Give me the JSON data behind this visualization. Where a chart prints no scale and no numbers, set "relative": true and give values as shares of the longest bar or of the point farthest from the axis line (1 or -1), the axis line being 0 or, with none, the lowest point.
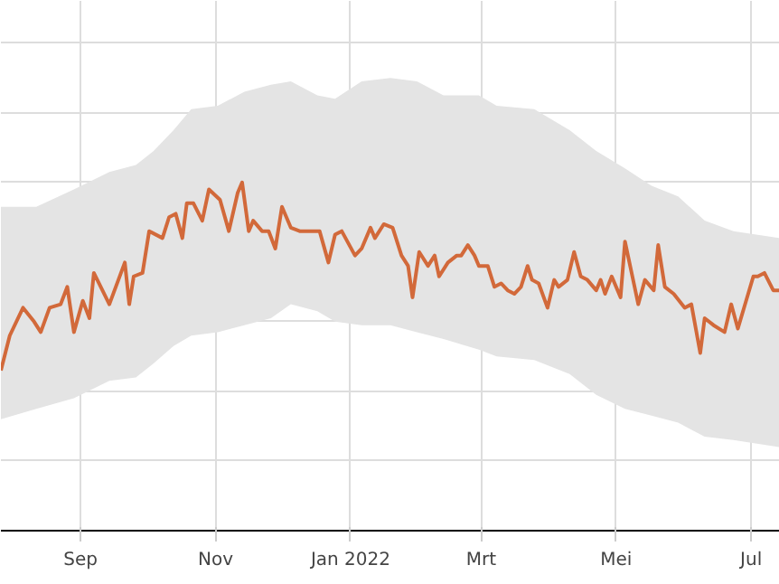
{
  "chart_data": {
    "type": "line",
    "relative": true,
    "grid": true,
    "xlim": [
      "2021-07-27",
      "2022-07-14"
    ],
    "xticks": [
      {
        "value": "2021-09-01",
        "label": "Sep"
      },
      {
        "value": "2021-11-01",
        "label": "Nov"
      },
      {
        "value": "2022-01-01",
        "label": "Jan 2022"
      },
      {
        "value": "2022-03-01",
        "label": "Mrt"
      },
      {
        "value": "2022-05-01",
        "label": "Mei"
      },
      {
        "value": "2022-07-01",
        "label": "Jul"
      }
    ],
    "series": [
      {
        "color": "#e4e4e4",
        "values": [
          null,
          null,
          null,
          null,
          null,
          null,
          null,
          null,
          null,
          null,
          null,
          null,
          null,
          null,
          null,
          null,
          null,
          null,
          null,
          null,
          null,
          null,
          null,
          null,
          null,
          null,
          null,
          null,
          null
        ],
        "x": [
          "2021-07-27",
          "2021-08-12",
          "2021-08-29",
          "2021-09-14",
          "2021-09-26",
          "2021-10-04",
          "2021-10-13",
          "2021-10-21",
          "2021-11-02",
          "2021-11-14",
          "2021-11-26",
          "2021-12-05",
          "2021-12-17",
          "2021-12-25",
          "2022-01-06",
          "2022-01-19",
          "2022-01-31",
          "2022-02-12",
          "2022-02-28",
          "2022-03-08",
          "2022-03-25",
          "2022-04-10",
          "2022-04-22",
          "2022-05-05",
          "2022-05-17",
          "2022-05-29",
          "2022-06-10",
          "2022-06-23",
          "2022-07-14"
        ],
        "lower": [
          0.32,
          0.35,
          0.38,
          0.43,
          0.44,
          0.48,
          0.53,
          0.56,
          0.57,
          0.59,
          0.61,
          0.65,
          0.63,
          0.6,
          0.59,
          0.59,
          0.57,
          0.55,
          0.52,
          0.5,
          0.49,
          0.45,
          0.39,
          0.35,
          0.33,
          0.31,
          0.27,
          0.26,
          0.24
        ],
        "upper": [
          0.93,
          0.93,
          0.98,
          1.03,
          1.05,
          1.09,
          1.15,
          1.21,
          1.22,
          1.26,
          1.28,
          1.29,
          1.25,
          1.24,
          1.29,
          1.3,
          1.29,
          1.25,
          1.25,
          1.22,
          1.21,
          1.15,
          1.09,
          1.04,
          0.99,
          0.96,
          0.89,
          0.86,
          0.84
        ]
      },
      {
        "color": "#d2693a",
        "x": [
          "2021-07-27",
          "2021-07-31",
          "2021-08-06",
          "2021-08-11",
          "2021-08-14",
          "2021-08-18",
          "2021-08-23",
          "2021-08-26",
          "2021-08-29",
          "2021-09-02",
          "2021-09-05",
          "2021-09-07",
          "2021-09-14",
          "2021-09-21",
          "2021-09-23",
          "2021-09-25",
          "2021-09-29",
          "2021-10-02",
          "2021-10-08",
          "2021-10-11",
          "2021-10-14",
          "2021-10-17",
          "2021-10-19",
          "2021-10-22",
          "2021-10-26",
          "2021-10-29",
          "2021-11-03",
          "2021-11-07",
          "2021-11-11",
          "2021-11-13",
          "2021-11-16",
          "2021-11-18",
          "2021-11-22",
          "2021-11-25",
          "2021-11-28",
          "2021-12-01",
          "2021-12-05",
          "2021-12-09",
          "2021-12-18",
          "2021-12-22",
          "2021-12-25",
          "2021-12-28",
          "2022-01-03",
          "2022-01-06",
          "2022-01-10",
          "2022-01-12",
          "2022-01-16",
          "2022-01-20",
          "2022-01-24",
          "2022-01-27",
          "2022-01-29",
          "2022-02-01",
          "2022-02-05",
          "2022-02-08",
          "2022-02-10",
          "2022-02-14",
          "2022-02-18",
          "2022-02-20",
          "2022-02-23",
          "2022-02-26",
          "2022-02-28",
          "2022-03-04",
          "2022-03-07",
          "2022-03-10",
          "2022-03-13",
          "2022-03-16",
          "2022-03-19",
          "2022-03-22",
          "2022-03-24",
          "2022-03-27",
          "2022-03-31",
          "2022-04-03",
          "2022-04-05",
          "2022-04-09",
          "2022-04-12",
          "2022-04-15",
          "2022-04-18",
          "2022-04-22",
          "2022-04-24",
          "2022-04-26",
          "2022-04-29",
          "2022-05-03",
          "2022-05-05",
          "2022-05-09",
          "2022-05-11",
          "2022-05-14",
          "2022-05-18",
          "2022-05-20",
          "2022-05-23",
          "2022-05-27",
          "2022-06-01",
          "2022-06-04",
          "2022-06-08",
          "2022-06-10",
          "2022-06-14",
          "2022-06-19",
          "2022-06-22",
          "2022-06-25",
          "2022-07-02",
          "2022-07-04",
          "2022-07-07",
          "2022-07-11",
          "2022-07-14"
        ],
        "values": [
          0.46,
          0.56,
          0.64,
          0.6,
          0.57,
          0.64,
          0.65,
          0.7,
          0.57,
          0.66,
          0.61,
          0.74,
          0.65,
          0.77,
          0.65,
          0.73,
          0.74,
          0.86,
          0.84,
          0.9,
          0.91,
          0.84,
          0.94,
          0.94,
          0.89,
          0.98,
          0.95,
          0.86,
          0.97,
          1.0,
          0.86,
          0.89,
          0.86,
          0.86,
          0.81,
          0.93,
          0.87,
          0.86,
          0.86,
          0.77,
          0.85,
          0.86,
          0.79,
          0.81,
          0.87,
          0.84,
          0.88,
          0.87,
          0.79,
          0.76,
          0.67,
          0.8,
          0.76,
          0.79,
          0.73,
          0.77,
          0.79,
          0.79,
          0.82,
          0.79,
          0.76,
          0.76,
          0.7,
          0.71,
          0.69,
          0.68,
          0.7,
          0.76,
          0.72,
          0.71,
          0.64,
          0.72,
          0.7,
          0.72,
          0.8,
          0.73,
          0.72,
          0.69,
          0.72,
          0.68,
          0.73,
          0.67,
          0.83,
          0.71,
          0.65,
          0.72,
          0.69,
          0.82,
          0.7,
          0.68,
          0.64,
          0.65,
          0.51,
          0.61,
          0.59,
          0.57,
          0.65,
          0.58,
          0.73,
          0.73,
          0.74,
          0.69,
          0.69
        ]
      }
    ]
  }
}
